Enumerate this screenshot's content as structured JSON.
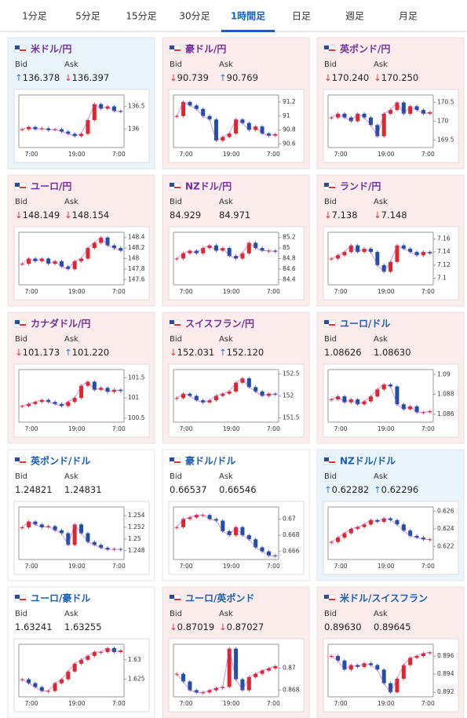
{
  "tabs": [
    "1分足",
    "5分足",
    "15分足",
    "30分足",
    "1時間足",
    "日足",
    "週足",
    "月足"
  ],
  "active_tab": 4,
  "labels": {
    "bid": "Bid",
    "ask": "Ask"
  },
  "x_labels": [
    "7:00",
    "19:00",
    "7:00"
  ],
  "cards": [
    {
      "name": "米ドル/円",
      "title_color": "#7030a0",
      "bg": "#eaf4fb",
      "bid_arrow": "↑",
      "bid": "136.378",
      "ask_arrow": "↓",
      "ask": "136.397",
      "chart": {
        "ylim": [
          135.6,
          136.75
        ],
        "yticks": [
          136.5,
          136
        ],
        "values": [
          136.0,
          136.05,
          136.0,
          136.02,
          135.98,
          136.0,
          135.95,
          135.9,
          135.85,
          135.9,
          136.2,
          136.55,
          136.45,
          136.5,
          136.4,
          136.38
        ]
      }
    },
    {
      "name": "豪ドル/円",
      "title_color": "#7030a0",
      "bg": "#fcecec",
      "bid_arrow": "↓",
      "bid": "90.739",
      "ask_arrow": "↑",
      "ask": "90.769",
      "chart": {
        "ylim": [
          90.55,
          91.3
        ],
        "yticks": [
          91.2,
          91,
          90.8,
          90.6
        ],
        "values": [
          91.0,
          91.2,
          91.15,
          91.1,
          91.0,
          90.95,
          90.65,
          90.7,
          90.75,
          90.95,
          90.9,
          90.8,
          90.85,
          90.75,
          90.72,
          90.74
        ]
      }
    },
    {
      "name": "英ポンド/円",
      "title_color": "#7030a0",
      "bg": "#fcecec",
      "bid_arrow": "↓",
      "bid": "170.240",
      "ask_arrow": "↓",
      "ask": "170.250",
      "chart": {
        "ylim": [
          169.3,
          170.7
        ],
        "yticks": [
          170.5,
          170,
          169.5
        ],
        "values": [
          170.1,
          170.2,
          170.1,
          170.0,
          170.2,
          170.1,
          169.9,
          169.6,
          170.2,
          170.3,
          170.5,
          170.2,
          170.4,
          170.3,
          170.2,
          170.24
        ]
      }
    },
    {
      "name": "ユーロ/円",
      "title_color": "#7030a0",
      "bg": "#fcecec",
      "bid_arrow": "↓",
      "bid": "148.149",
      "ask_arrow": "↓",
      "ask": "148.154",
      "chart": {
        "ylim": [
          147.5,
          148.5
        ],
        "yticks": [
          148.4,
          148.2,
          148,
          147.8,
          147.6
        ],
        "values": [
          147.9,
          148.0,
          147.95,
          148.0,
          147.9,
          147.95,
          147.85,
          147.8,
          147.95,
          148.0,
          148.2,
          148.3,
          148.4,
          148.25,
          148.2,
          148.15
        ]
      }
    },
    {
      "name": "NZドル/円",
      "title_color": "#7030a0",
      "bg": "#fcecec",
      "bid": "84.929",
      "ask": "84.971",
      "chart": {
        "ylim": [
          84.3,
          85.3
        ],
        "yticks": [
          85.2,
          85,
          84.8,
          84.6,
          84.4
        ],
        "values": [
          84.8,
          84.9,
          84.95,
          84.9,
          85.0,
          85.05,
          84.95,
          85.0,
          84.85,
          84.8,
          84.9,
          85.1,
          85.0,
          84.95,
          84.95,
          84.93
        ]
      }
    },
    {
      "name": "ランド/円",
      "title_color": "#7030a0",
      "bg": "#fcecec",
      "bid_arrow": "↓",
      "bid": "7.138",
      "ask_arrow": "↓",
      "ask": "7.148",
      "chart": {
        "ylim": [
          7.09,
          7.17
        ],
        "yticks": [
          7.16,
          7.14,
          7.12,
          7.1
        ],
        "values": [
          7.13,
          7.135,
          7.14,
          7.15,
          7.14,
          7.145,
          7.14,
          7.12,
          7.11,
          7.125,
          7.15,
          7.145,
          7.14,
          7.135,
          7.14,
          7.138
        ]
      }
    },
    {
      "name": "カナダドル/円",
      "title_color": "#7030a0",
      "bg": "#fcecec",
      "bid_arrow": "↓",
      "bid": "101.173",
      "ask_arrow": "↑",
      "ask": "101.220",
      "chart": {
        "ylim": [
          100.4,
          101.7
        ],
        "yticks": [
          101.5,
          101,
          100.5
        ],
        "values": [
          100.8,
          100.85,
          100.9,
          100.95,
          100.9,
          100.85,
          100.8,
          100.9,
          101.0,
          101.3,
          101.4,
          101.2,
          101.25,
          101.15,
          101.2,
          101.17
        ]
      }
    },
    {
      "name": "スイスフラン/円",
      "title_color": "#7030a0",
      "bg": "#fcecec",
      "bid_arrow": "↓",
      "bid": "152.031",
      "ask_arrow": "↑",
      "ask": "152.120",
      "chart": {
        "ylim": [
          151.4,
          152.6
        ],
        "yticks": [
          152.5,
          152,
          151.5
        ],
        "values": [
          151.95,
          152.05,
          152.0,
          151.9,
          151.85,
          151.9,
          152.0,
          152.05,
          152.1,
          152.3,
          152.4,
          152.2,
          152.1,
          152.0,
          152.05,
          152.03
        ]
      }
    },
    {
      "name": "ユーロ/ドル",
      "title_color": "#1a5fb4",
      "bg": "#fcecec",
      "bid": "1.08626",
      "ask": "1.08630",
      "chart": {
        "ylim": [
          1.0852,
          1.0905
        ],
        "yticks": [
          1.09,
          1.088,
          1.086
        ],
        "values": [
          1.0875,
          1.0878,
          1.0872,
          1.0875,
          1.087,
          1.0873,
          1.0878,
          1.0885,
          1.089,
          1.0888,
          1.087,
          1.0865,
          1.0868,
          1.0862,
          1.0862,
          1.0863
        ]
      }
    },
    {
      "name": "英ポンド/ドル",
      "title_color": "#1a5fb4",
      "bg": "#ffffff",
      "bid": "1.24821",
      "ask": "1.24831",
      "chart": {
        "ylim": [
          1.2465,
          1.2555
        ],
        "yticks": [
          1.254,
          1.252,
          1.25,
          1.248
        ],
        "values": [
          1.252,
          1.253,
          1.2525,
          1.252,
          1.2522,
          1.2515,
          1.251,
          1.249,
          1.2525,
          1.251,
          1.2495,
          1.249,
          1.2485,
          1.2482,
          1.2483,
          1.2482
        ]
      }
    },
    {
      "name": "豪ドル/ドル",
      "title_color": "#1a5fb4",
      "bg": "#ffffff",
      "bid": "0.66537",
      "ask": "0.66546",
      "chart": {
        "ylim": [
          0.665,
          0.6715
        ],
        "yticks": [
          0.67,
          0.668,
          0.666
        ],
        "values": [
          0.669,
          0.67,
          0.6702,
          0.6705,
          0.6705,
          0.67,
          0.6698,
          0.6685,
          0.668,
          0.669,
          0.668,
          0.6675,
          0.6665,
          0.666,
          0.6655,
          0.6654
        ]
      }
    },
    {
      "name": "NZドル/ドル",
      "title_color": "#1a5fb4",
      "bg": "#eaf4fb",
      "bid_arrow": "↑",
      "bid": "0.62282",
      "ask_arrow": "↑",
      "ask": "0.62296",
      "chart": {
        "ylim": [
          0.6205,
          0.6265
        ],
        "yticks": [
          0.626,
          0.624,
          0.622
        ],
        "values": [
          0.6225,
          0.623,
          0.6235,
          0.624,
          0.6242,
          0.6245,
          0.625,
          0.6248,
          0.6252,
          0.625,
          0.6245,
          0.6238,
          0.6232,
          0.623,
          0.6228,
          0.6228
        ]
      }
    },
    {
      "name": "ユーロ/豪ドル",
      "title_color": "#1a5fb4",
      "bg": "#ffffff",
      "bid": "1.63241",
      "ask": "1.63255",
      "chart": {
        "ylim": [
          1.6205,
          1.634
        ],
        "yticks": [
          1.63,
          1.625
        ],
        "values": [
          1.625,
          1.624,
          1.623,
          1.622,
          1.622,
          1.624,
          1.625,
          1.627,
          1.629,
          1.63,
          1.631,
          1.632,
          1.632,
          1.633,
          1.632,
          1.6324
        ]
      }
    },
    {
      "name": "ユーロ/英ポンド",
      "title_color": "#1a5fb4",
      "bg": "#fcecec",
      "bid_arrow": "↓",
      "bid": "0.87019",
      "ask_arrow": "↓",
      "ask": "0.87027",
      "chart": {
        "ylim": [
          0.8674,
          0.8722
        ],
        "yticks": [
          0.87,
          0.868
        ],
        "values": [
          0.8695,
          0.8688,
          0.868,
          0.8678,
          0.8678,
          0.868,
          0.8682,
          0.8683,
          0.8718,
          0.869,
          0.868,
          0.8692,
          0.8695,
          0.8698,
          0.87,
          0.8702
        ]
      }
    },
    {
      "name": "米ドル/スイスフラン",
      "title_color": "#1a5fb4",
      "bg": "#fcecec",
      "bid": "0.89630",
      "ask": "0.89645",
      "chart": {
        "ylim": [
          0.8915,
          0.8973
        ],
        "yticks": [
          0.896,
          0.894,
          0.892
        ],
        "values": [
          0.896,
          0.8955,
          0.8945,
          0.895,
          0.8948,
          0.8952,
          0.895,
          0.8945,
          0.893,
          0.892,
          0.8935,
          0.895,
          0.8958,
          0.896,
          0.8963,
          0.8964
        ]
      }
    }
  ]
}
